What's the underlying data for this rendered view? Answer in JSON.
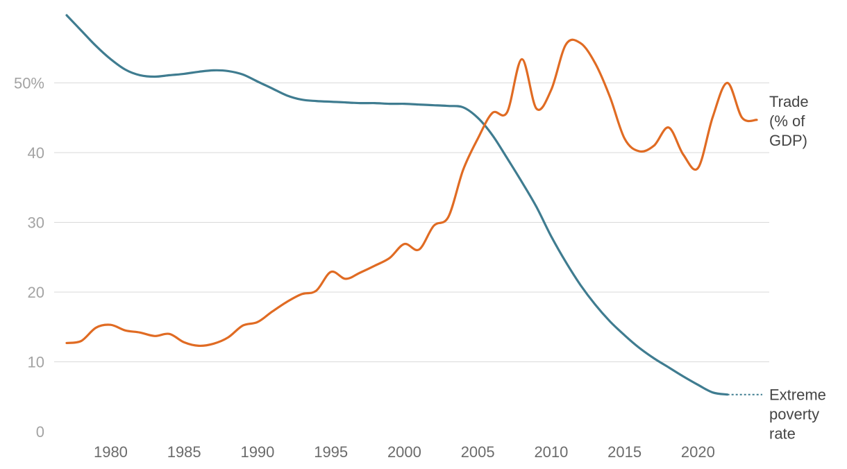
{
  "chart_data": {
    "type": "line",
    "title": "",
    "xlabel": "",
    "ylabel": "",
    "xlim": [
      1977,
      2024
    ],
    "ylim": [
      0,
      60
    ],
    "y_ticks": [
      0,
      10,
      20,
      30,
      40,
      50
    ],
    "y_tick_labels": [
      "0",
      "10",
      "20",
      "30",
      "40",
      "50%"
    ],
    "x_ticks": [
      1980,
      1985,
      1990,
      1995,
      2000,
      2005,
      2010,
      2015,
      2020
    ],
    "x_tick_labels": [
      "1980",
      "1985",
      "1990",
      "1995",
      "2000",
      "2005",
      "2010",
      "2015",
      "2020"
    ],
    "grid": true,
    "series": [
      {
        "name": "Extreme poverty rate",
        "label_lines": [
          "Extreme",
          "poverty",
          "rate"
        ],
        "color": "#3f7c90",
        "x": [
          1977,
          1978,
          1979,
          1980,
          1981,
          1982,
          1983,
          1984,
          1985,
          1986,
          1987,
          1988,
          1989,
          1990,
          1991,
          1992,
          1993,
          1994,
          1995,
          1996,
          1997,
          1998,
          1999,
          2000,
          2001,
          2002,
          2003,
          2004,
          2005,
          2006,
          2007,
          2008,
          2009,
          2010,
          2011,
          2012,
          2013,
          2014,
          2015,
          2016,
          2017,
          2018,
          2019,
          2020,
          2021,
          2022
        ],
        "values": [
          59.7,
          57.5,
          55.3,
          53.4,
          51.9,
          51.1,
          50.9,
          51.1,
          51.3,
          51.6,
          51.8,
          51.7,
          51.2,
          50.2,
          49.2,
          48.2,
          47.6,
          47.4,
          47.3,
          47.2,
          47.1,
          47.1,
          47.0,
          47.0,
          46.9,
          46.8,
          46.7,
          46.5,
          45.0,
          42.5,
          39.2,
          35.8,
          32.2,
          28.0,
          24.3,
          21.0,
          18.2,
          15.8,
          13.8,
          12.0,
          10.5,
          9.2,
          7.9,
          6.7,
          5.6,
          5.3
        ],
        "projection_to": 2024
      },
      {
        "name": "Trade (% of GDP)",
        "label_lines": [
          "Trade",
          "(% of",
          "GDP)"
        ],
        "color": "#e06b23",
        "x": [
          1977,
          1978,
          1979,
          1980,
          1981,
          1982,
          1983,
          1984,
          1985,
          1986,
          1987,
          1988,
          1989,
          1990,
          1991,
          1992,
          1993,
          1994,
          1995,
          1996,
          1997,
          1998,
          1999,
          2000,
          2001,
          2002,
          2003,
          2004,
          2005,
          2006,
          2007,
          2008,
          2009,
          2010,
          2011,
          2012,
          2013,
          2014,
          2015,
          2016,
          2017,
          2018,
          2019,
          2020,
          2021,
          2022,
          2023,
          2024
        ],
        "values": [
          12.7,
          13.0,
          14.9,
          15.3,
          14.5,
          14.2,
          13.7,
          14.0,
          12.8,
          12.3,
          12.6,
          13.5,
          15.2,
          15.7,
          17.2,
          18.6,
          19.7,
          20.2,
          22.9,
          21.9,
          22.8,
          23.8,
          24.9,
          26.9,
          26.1,
          29.5,
          30.8,
          37.5,
          42.0,
          45.7,
          45.8,
          53.4,
          46.3,
          49.0,
          55.5,
          55.7,
          52.8,
          48.0,
          42.0,
          40.2,
          41.0,
          43.6,
          39.7,
          37.8,
          45.1,
          50.0,
          45.0,
          44.7
        ]
      }
    ]
  }
}
